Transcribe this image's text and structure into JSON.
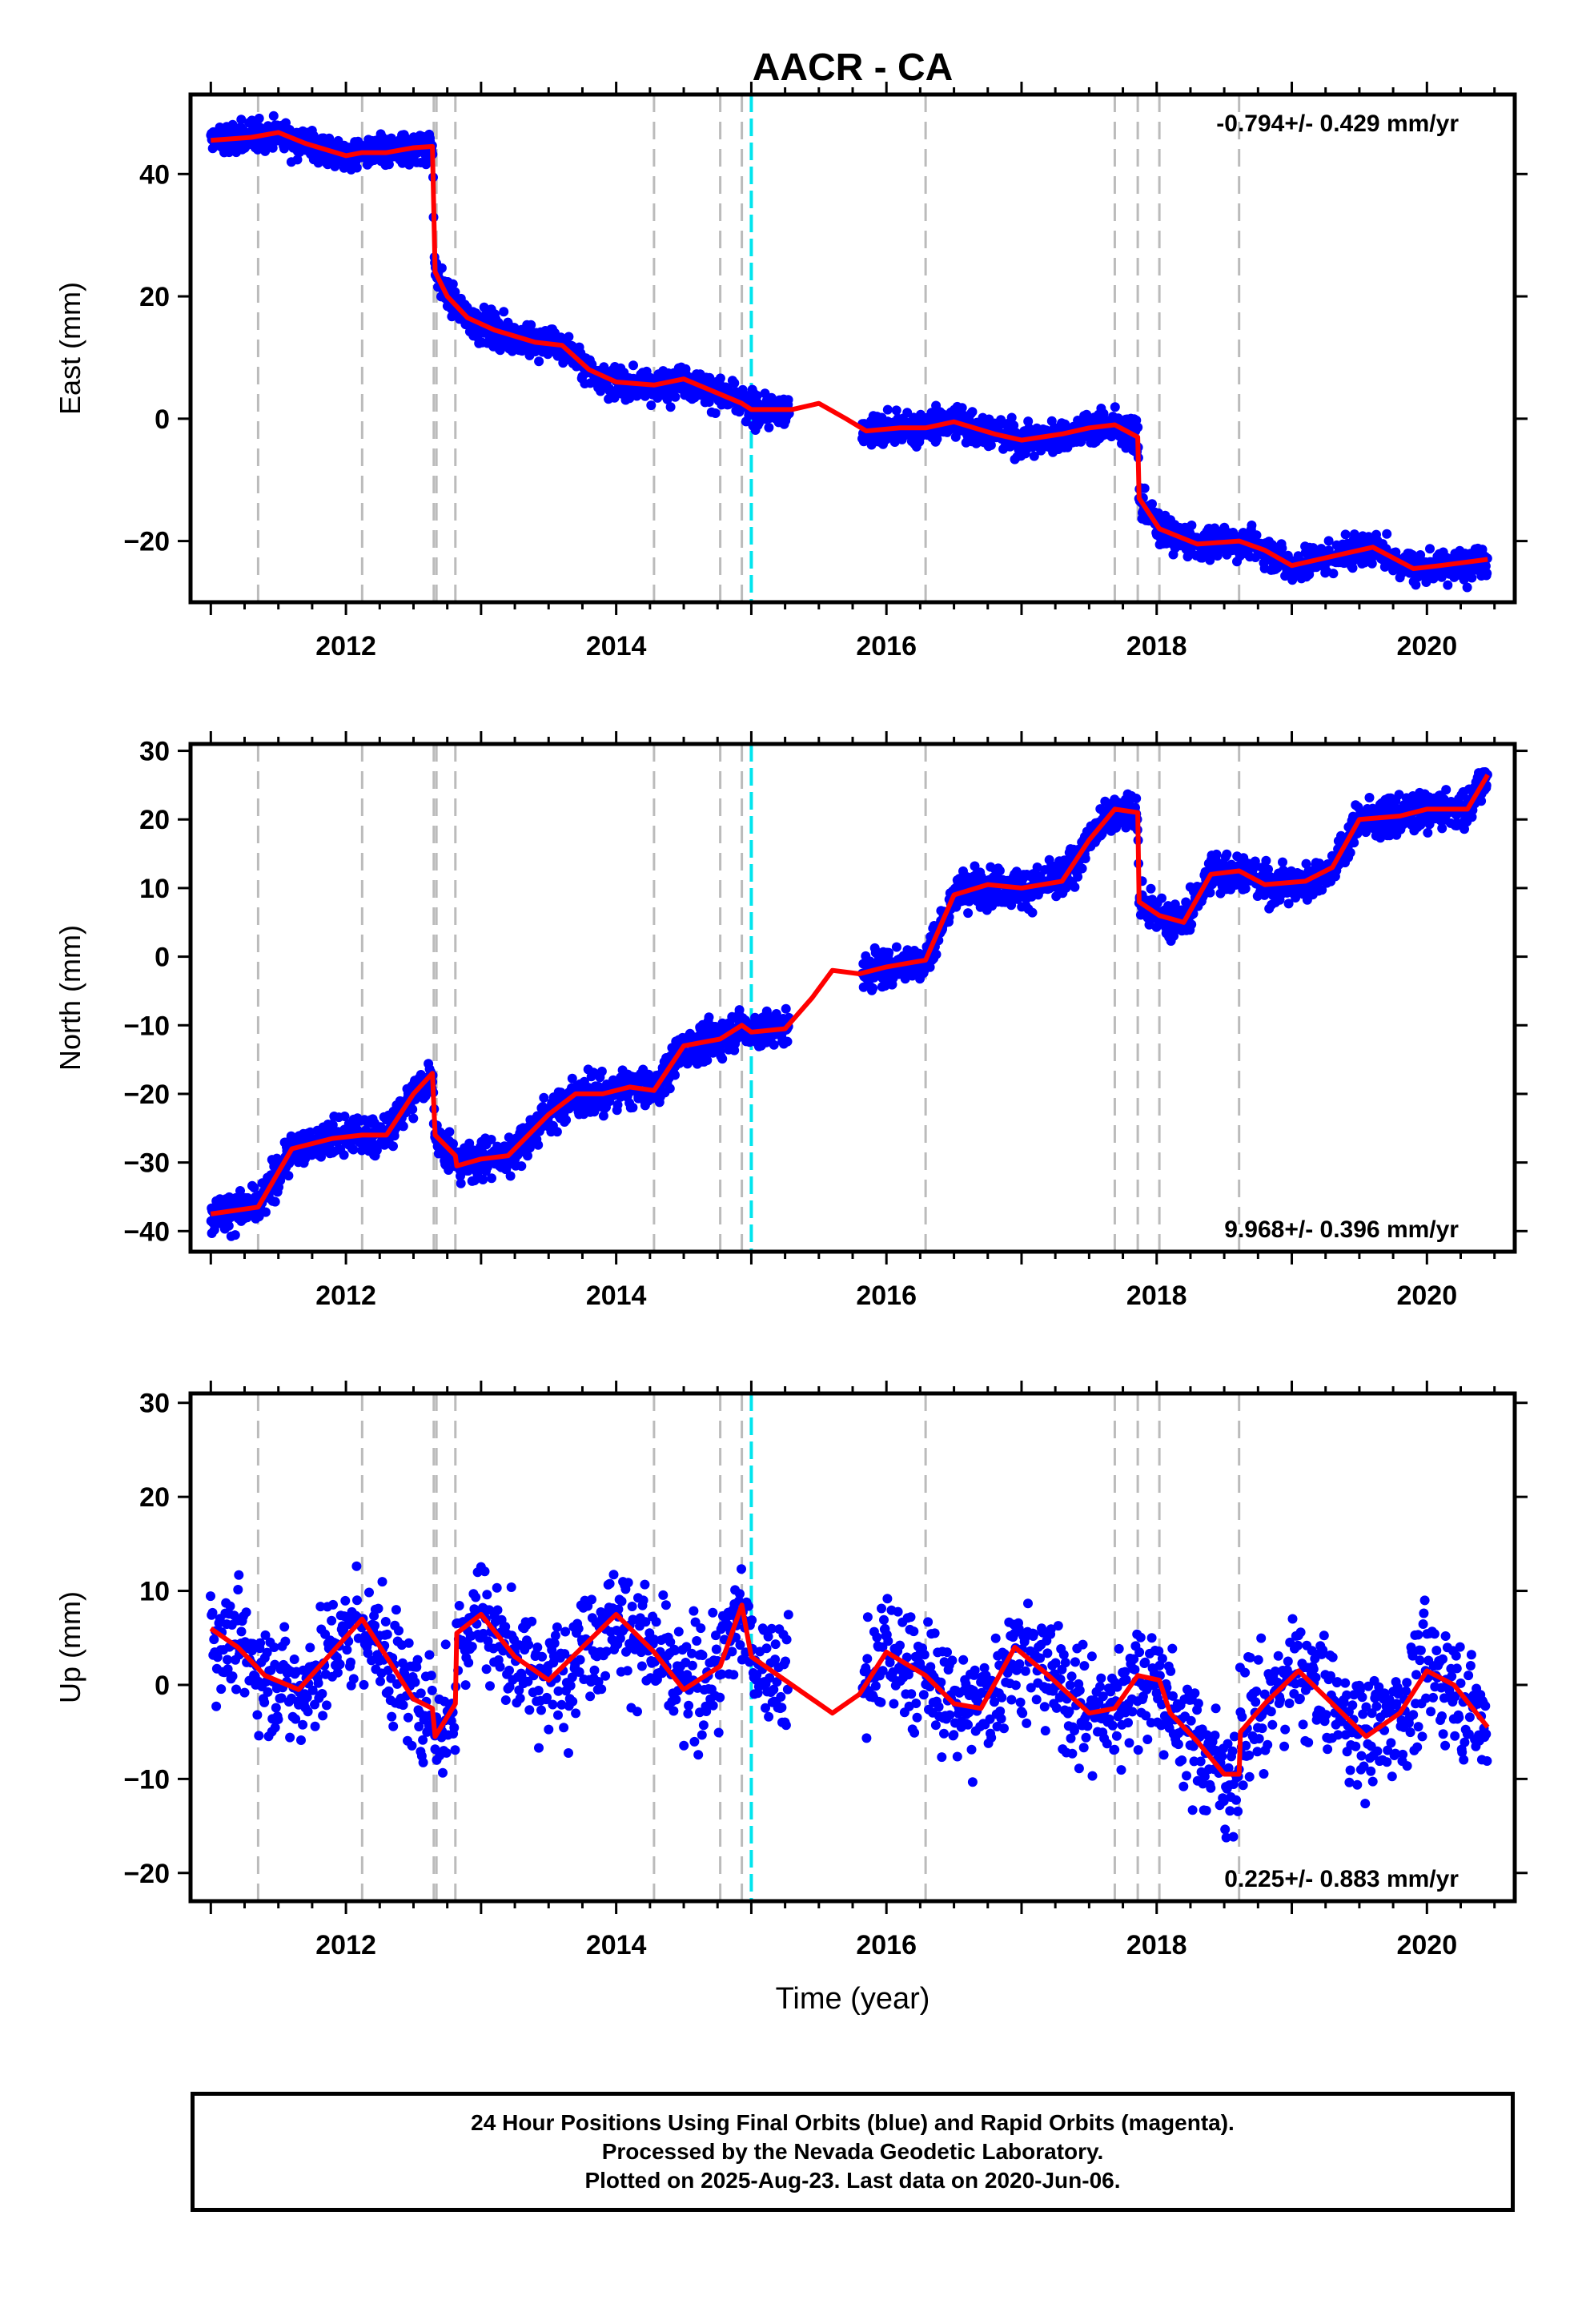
{
  "title": "AACR - CA",
  "footer": {
    "line1": "24 Hour Positions Using Final Orbits (blue) and Rapid Orbits (magenta).",
    "line2": "Processed by the Nevada Geodetic Laboratory.",
    "line3": "Plotted on 2025-Aug-23. Last data on 2020-Jun-06."
  },
  "colors": {
    "points": "#0000ff",
    "fit": "#ff0000",
    "event_lines": "#bbbbbb",
    "cyan_line": "#00e5ee"
  },
  "chart_data": [
    {
      "type": "scatter",
      "title": "AACR - CA",
      "ylabel": "East (mm)",
      "xlabel": "",
      "xlim": [
        2010.85,
        2020.65
      ],
      "ylim": [
        -30,
        53
      ],
      "xticks": [
        2012,
        2014,
        2016,
        2018,
        2020
      ],
      "yticks": [
        -20,
        0,
        20,
        40
      ],
      "rate_text": "-0.794+/- 0.429 mm/yr",
      "rate_position": "top-right",
      "event_lines": [
        2011.35,
        2012.12,
        2012.65,
        2012.67,
        2012.81,
        2014.28,
        2014.77,
        2014.93,
        2016.29,
        2017.69,
        2017.86,
        2018.02,
        2018.61
      ],
      "cyan_lines": [
        2015.0
      ],
      "gap": [
        2015.28,
        2015.82
      ],
      "fit": [
        [
          2011.0,
          45.5
        ],
        [
          2011.3,
          46
        ],
        [
          2011.5,
          46.8
        ],
        [
          2011.7,
          45
        ],
        [
          2012.0,
          43
        ],
        [
          2012.12,
          43.5
        ],
        [
          2012.3,
          43.5
        ],
        [
          2012.5,
          44.3
        ],
        [
          2012.64,
          44.5
        ],
        [
          2012.66,
          24
        ],
        [
          2012.75,
          20
        ],
        [
          2012.9,
          16.5
        ],
        [
          2013.1,
          14.5
        ],
        [
          2013.4,
          12.5
        ],
        [
          2013.6,
          12
        ],
        [
          2013.8,
          8
        ],
        [
          2014.0,
          6
        ],
        [
          2014.28,
          5.5
        ],
        [
          2014.5,
          6.5
        ],
        [
          2014.77,
          4
        ],
        [
          2014.93,
          2.5
        ],
        [
          2015.0,
          1.5
        ],
        [
          2015.3,
          1.5
        ],
        [
          2015.5,
          2.5
        ],
        [
          2015.7,
          0
        ],
        [
          2015.85,
          -2
        ],
        [
          2016.1,
          -1.5
        ],
        [
          2016.29,
          -1.5
        ],
        [
          2016.5,
          -0.5
        ],
        [
          2016.8,
          -2.5
        ],
        [
          2017.0,
          -3.5
        ],
        [
          2017.3,
          -2.5
        ],
        [
          2017.5,
          -1.5
        ],
        [
          2017.69,
          -1
        ],
        [
          2017.86,
          -3
        ],
        [
          2017.87,
          -13
        ],
        [
          2018.02,
          -18
        ],
        [
          2018.3,
          -20.5
        ],
        [
          2018.61,
          -20
        ],
        [
          2018.8,
          -21.5
        ],
        [
          2019.0,
          -24
        ],
        [
          2019.3,
          -22.5
        ],
        [
          2019.6,
          -21
        ],
        [
          2019.9,
          -24.5
        ],
        [
          2020.1,
          -24
        ],
        [
          2020.45,
          -23
        ]
      ],
      "scatter_spread": 2.2
    },
    {
      "type": "scatter",
      "ylabel": "North (mm)",
      "xlabel": "",
      "xlim": [
        2010.85,
        2020.65
      ],
      "ylim": [
        -43,
        31
      ],
      "xticks": [
        2012,
        2014,
        2016,
        2018,
        2020
      ],
      "yticks": [
        -40,
        -30,
        -20,
        -10,
        0,
        10,
        20,
        30
      ],
      "rate_text": "9.968+/- 0.396 mm/yr",
      "rate_position": "bottom-right",
      "event_lines": [
        2011.35,
        2012.12,
        2012.65,
        2012.67,
        2012.81,
        2014.28,
        2014.77,
        2014.93,
        2016.29,
        2017.69,
        2017.86,
        2018.02,
        2018.61
      ],
      "cyan_lines": [
        2015.0
      ],
      "gap": [
        2015.28,
        2015.82
      ],
      "fit": [
        [
          2011.0,
          -37.5
        ],
        [
          2011.35,
          -36.5
        ],
        [
          2011.6,
          -28
        ],
        [
          2011.9,
          -26.5
        ],
        [
          2012.12,
          -26
        ],
        [
          2012.3,
          -26
        ],
        [
          2012.5,
          -20
        ],
        [
          2012.64,
          -17
        ],
        [
          2012.66,
          -26
        ],
        [
          2012.81,
          -29
        ],
        [
          2012.82,
          -30.5
        ],
        [
          2013.0,
          -29.5
        ],
        [
          2013.2,
          -29
        ],
        [
          2013.5,
          -23
        ],
        [
          2013.7,
          -20
        ],
        [
          2013.9,
          -20
        ],
        [
          2014.1,
          -19
        ],
        [
          2014.28,
          -19.5
        ],
        [
          2014.5,
          -13
        ],
        [
          2014.77,
          -12
        ],
        [
          2014.93,
          -10
        ],
        [
          2015.0,
          -11
        ],
        [
          2015.25,
          -10.5
        ],
        [
          2015.45,
          -6
        ],
        [
          2015.6,
          -2
        ],
        [
          2015.8,
          -2.5
        ],
        [
          2016.0,
          -1.5
        ],
        [
          2016.29,
          -0.5
        ],
        [
          2016.5,
          9
        ],
        [
          2016.75,
          10.5
        ],
        [
          2017.0,
          10
        ],
        [
          2017.3,
          11
        ],
        [
          2017.5,
          17
        ],
        [
          2017.69,
          21.5
        ],
        [
          2017.86,
          21
        ],
        [
          2017.87,
          8
        ],
        [
          2018.02,
          6
        ],
        [
          2018.2,
          5
        ],
        [
          2018.4,
          12
        ],
        [
          2018.61,
          12.5
        ],
        [
          2018.8,
          10.5
        ],
        [
          2019.1,
          11
        ],
        [
          2019.3,
          13
        ],
        [
          2019.5,
          20
        ],
        [
          2019.8,
          20.5
        ],
        [
          2020.0,
          21.5
        ],
        [
          2020.3,
          21.5
        ],
        [
          2020.45,
          26.5
        ]
      ],
      "scatter_spread": 2.3
    },
    {
      "type": "scatter",
      "ylabel": "Up (mm)",
      "xlabel": "Time (year)",
      "xlim": [
        2010.85,
        2020.65
      ],
      "ylim": [
        -23,
        31
      ],
      "xticks": [
        2012,
        2014,
        2016,
        2018,
        2020
      ],
      "yticks": [
        -20,
        -10,
        0,
        10,
        20,
        30
      ],
      "rate_text": "0.225+/- 0.883 mm/yr",
      "rate_position": "bottom-right",
      "event_lines": [
        2011.35,
        2012.12,
        2012.65,
        2012.67,
        2012.81,
        2014.28,
        2014.77,
        2014.93,
        2016.29,
        2017.69,
        2017.86,
        2018.02,
        2018.61
      ],
      "cyan_lines": [
        2015.0
      ],
      "gap": [
        2015.28,
        2015.82
      ],
      "fit": [
        [
          2011.0,
          6
        ],
        [
          2011.2,
          4
        ],
        [
          2011.4,
          1
        ],
        [
          2011.65,
          -0.5
        ],
        [
          2011.9,
          3.5
        ],
        [
          2012.12,
          7
        ],
        [
          2012.3,
          3
        ],
        [
          2012.5,
          -1.5
        ],
        [
          2012.64,
          -2.5
        ],
        [
          2012.66,
          -5.5
        ],
        [
          2012.81,
          -2
        ],
        [
          2012.82,
          5.5
        ],
        [
          2013.0,
          7.5
        ],
        [
          2013.25,
          3
        ],
        [
          2013.5,
          0.5
        ],
        [
          2013.75,
          4
        ],
        [
          2014.0,
          7.5
        ],
        [
          2014.28,
          3.5
        ],
        [
          2014.5,
          -0.5
        ],
        [
          2014.77,
          2
        ],
        [
          2014.93,
          8.5
        ],
        [
          2015.0,
          3
        ],
        [
          2015.3,
          0
        ],
        [
          2015.6,
          -3
        ],
        [
          2015.8,
          -1
        ],
        [
          2016.0,
          3.5
        ],
        [
          2016.29,
          1
        ],
        [
          2016.5,
          -2
        ],
        [
          2016.7,
          -2.5
        ],
        [
          2016.95,
          4
        ],
        [
          2017.2,
          1
        ],
        [
          2017.5,
          -3
        ],
        [
          2017.69,
          -2.5
        ],
        [
          2017.86,
          1
        ],
        [
          2018.02,
          0.5
        ],
        [
          2018.1,
          -3
        ],
        [
          2018.3,
          -6
        ],
        [
          2018.5,
          -9.5
        ],
        [
          2018.61,
          -9.5
        ],
        [
          2018.62,
          -5
        ],
        [
          2018.8,
          -2
        ],
        [
          2019.05,
          1.5
        ],
        [
          2019.3,
          -2
        ],
        [
          2019.55,
          -5.5
        ],
        [
          2019.8,
          -3
        ],
        [
          2020.0,
          1.5
        ],
        [
          2020.2,
          0
        ],
        [
          2020.45,
          -4.5
        ]
      ],
      "scatter_spread": 5.2
    }
  ]
}
